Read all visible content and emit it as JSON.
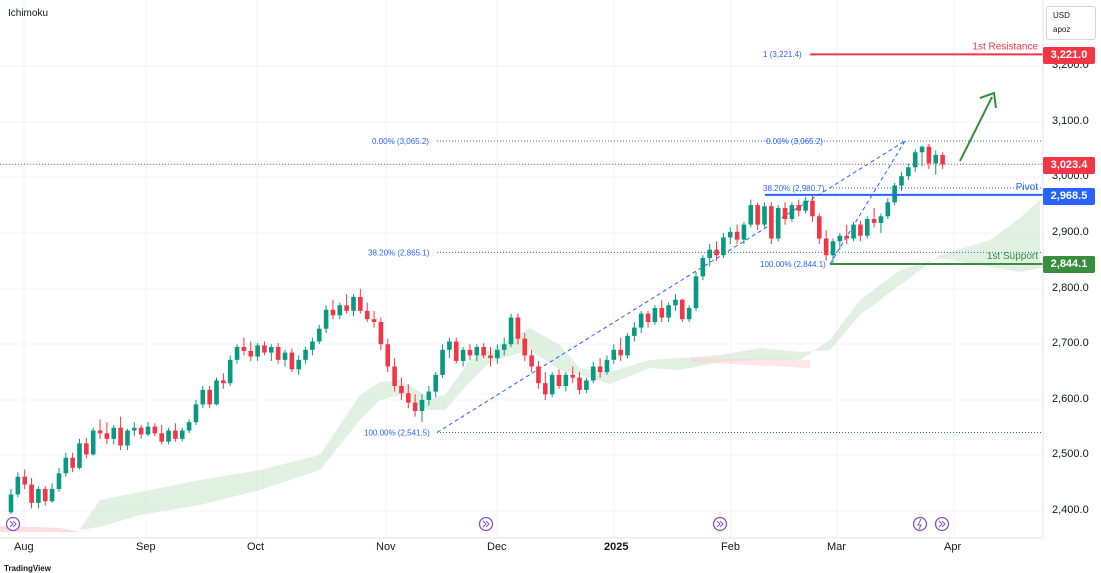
{
  "indicator": "Ichimoku",
  "currency": {
    "code": "USD",
    "sub": "apoz"
  },
  "colors": {
    "up": "#089981",
    "down": "#f23645",
    "resistance": "#f23645",
    "pivot": "#2962ff",
    "support": "#388e3c",
    "cloud_bull": "#c8e6c9",
    "cloud_bear": "#ffcdd2",
    "fib": "#2962ff",
    "arrow": "#388e3c",
    "event": "#7e57c2"
  },
  "price_tags": {
    "resistance": "3,221.0",
    "current": "3,023.4",
    "pivot": "2,968.5",
    "support": "2,844.1"
  },
  "level_labels": {
    "resistance": "1st Resistance",
    "pivot": "Pivot",
    "support": "1st Support"
  },
  "fib_labels": {
    "top_left": "0.00% (3,065.2)",
    "mid_left": "38.20% (2,865.1)",
    "bottom_left": "100.00% (2,541.5)",
    "top_right": "0.00% (3,065.2)",
    "mid_right": "38.20% (2,980.7)",
    "bottom_right": "100.00% (2,844.1)",
    "extension": "1 (3,221.4)"
  },
  "y_axis": [
    "3,200.0",
    "3,100.0",
    "3,000.0",
    "2,900.0",
    "2,800.0",
    "2,700.0",
    "2,600.0",
    "2,500.0",
    "2,400.0"
  ],
  "x_axis": [
    "Aug",
    "Sep",
    "Oct",
    "Nov",
    "Dec",
    "2025",
    "Feb",
    "Mar",
    "Apr"
  ],
  "footer": "TradingView",
  "chart_data": {
    "type": "candlestick",
    "title": "",
    "ylim": [
      2370,
      3245
    ],
    "levels": {
      "resistance": 3221.0,
      "pivot": 2968.5,
      "support": 2844.1,
      "current": 3023.4
    },
    "candles": [
      [
        2398,
        2440,
        2395,
        2430
      ],
      [
        2430,
        2470,
        2425,
        2462
      ],
      [
        2462,
        2475,
        2440,
        2448
      ],
      [
        2448,
        2460,
        2405,
        2415
      ],
      [
        2415,
        2445,
        2405,
        2440
      ],
      [
        2440,
        2445,
        2410,
        2418
      ],
      [
        2418,
        2450,
        2415,
        2440
      ],
      [
        2440,
        2478,
        2435,
        2468
      ],
      [
        2468,
        2505,
        2462,
        2496
      ],
      [
        2496,
        2505,
        2470,
        2478
      ],
      [
        2478,
        2530,
        2475,
        2522
      ],
      [
        2522,
        2532,
        2495,
        2502
      ],
      [
        2502,
        2550,
        2500,
        2545
      ],
      [
        2545,
        2565,
        2530,
        2540
      ],
      [
        2540,
        2560,
        2520,
        2530
      ],
      [
        2530,
        2555,
        2520,
        2550
      ],
      [
        2550,
        2570,
        2510,
        2518
      ],
      [
        2518,
        2548,
        2510,
        2545
      ],
      [
        2545,
        2560,
        2535,
        2550
      ],
      [
        2550,
        2555,
        2530,
        2538
      ],
      [
        2538,
        2560,
        2535,
        2552
      ],
      [
        2552,
        2558,
        2535,
        2540
      ],
      [
        2540,
        2555,
        2520,
        2525
      ],
      [
        2525,
        2550,
        2520,
        2545
      ],
      [
        2545,
        2558,
        2525,
        2530
      ],
      [
        2530,
        2550,
        2525,
        2545
      ],
      [
        2545,
        2565,
        2540,
        2560
      ],
      [
        2560,
        2600,
        2555,
        2592
      ],
      [
        2592,
        2625,
        2585,
        2618
      ],
      [
        2618,
        2625,
        2585,
        2592
      ],
      [
        2592,
        2640,
        2590,
        2635
      ],
      [
        2635,
        2648,
        2620,
        2630
      ],
      [
        2630,
        2680,
        2625,
        2672
      ],
      [
        2672,
        2700,
        2665,
        2695
      ],
      [
        2695,
        2712,
        2680,
        2688
      ],
      [
        2688,
        2705,
        2670,
        2678
      ],
      [
        2678,
        2702,
        2670,
        2698
      ],
      [
        2698,
        2705,
        2680,
        2685
      ],
      [
        2685,
        2700,
        2670,
        2695
      ],
      [
        2695,
        2702,
        2665,
        2672
      ],
      [
        2672,
        2690,
        2660,
        2685
      ],
      [
        2685,
        2692,
        2650,
        2655
      ],
      [
        2655,
        2680,
        2645,
        2672
      ],
      [
        2672,
        2695,
        2665,
        2690
      ],
      [
        2690,
        2712,
        2680,
        2705
      ],
      [
        2705,
        2735,
        2700,
        2728
      ],
      [
        2728,
        2770,
        2720,
        2762
      ],
      [
        2762,
        2780,
        2745,
        2752
      ],
      [
        2752,
        2775,
        2745,
        2770
      ],
      [
        2770,
        2790,
        2755,
        2760
      ],
      [
        2760,
        2790,
        2750,
        2785
      ],
      [
        2785,
        2800,
        2755,
        2760
      ],
      [
        2760,
        2775,
        2740,
        2745
      ],
      [
        2745,
        2760,
        2730,
        2740
      ],
      [
        2740,
        2748,
        2690,
        2700
      ],
      [
        2700,
        2710,
        2650,
        2660
      ],
      [
        2660,
        2675,
        2615,
        2625
      ],
      [
        2625,
        2640,
        2600,
        2612
      ],
      [
        2612,
        2628,
        2585,
        2595
      ],
      [
        2595,
        2610,
        2570,
        2580
      ],
      [
        2580,
        2610,
        2560,
        2600
      ],
      [
        2600,
        2625,
        2590,
        2615
      ],
      [
        2615,
        2650,
        2605,
        2645
      ],
      [
        2645,
        2700,
        2640,
        2690
      ],
      [
        2690,
        2712,
        2675,
        2705
      ],
      [
        2705,
        2712,
        2665,
        2670
      ],
      [
        2670,
        2695,
        2660,
        2690
      ],
      [
        2690,
        2700,
        2672,
        2680
      ],
      [
        2680,
        2700,
        2670,
        2695
      ],
      [
        2695,
        2702,
        2675,
        2680
      ],
      [
        2680,
        2695,
        2660,
        2675
      ],
      [
        2675,
        2700,
        2665,
        2690
      ],
      [
        2690,
        2712,
        2680,
        2700
      ],
      [
        2700,
        2755,
        2695,
        2748
      ],
      [
        2748,
        2755,
        2700,
        2710
      ],
      [
        2710,
        2720,
        2670,
        2680
      ],
      [
        2680,
        2690,
        2650,
        2660
      ],
      [
        2660,
        2670,
        2620,
        2630
      ],
      [
        2630,
        2650,
        2600,
        2610
      ],
      [
        2610,
        2650,
        2605,
        2645
      ],
      [
        2645,
        2655,
        2620,
        2625
      ],
      [
        2625,
        2650,
        2615,
        2645
      ],
      [
        2645,
        2660,
        2630,
        2640
      ],
      [
        2640,
        2650,
        2610,
        2618
      ],
      [
        2618,
        2640,
        2612,
        2635
      ],
      [
        2635,
        2668,
        2630,
        2660
      ],
      [
        2660,
        2675,
        2640,
        2650
      ],
      [
        2650,
        2680,
        2645,
        2672
      ],
      [
        2672,
        2700,
        2665,
        2690
      ],
      [
        2690,
        2712,
        2670,
        2680
      ],
      [
        2680,
        2720,
        2675,
        2715
      ],
      [
        2715,
        2740,
        2705,
        2730
      ],
      [
        2730,
        2760,
        2720,
        2755
      ],
      [
        2755,
        2760,
        2730,
        2740
      ],
      [
        2740,
        2770,
        2735,
        2765
      ],
      [
        2765,
        2780,
        2740,
        2748
      ],
      [
        2748,
        2775,
        2740,
        2770
      ],
      [
        2770,
        2790,
        2760,
        2780
      ],
      [
        2780,
        2782,
        2740,
        2745
      ],
      [
        2745,
        2770,
        2740,
        2765
      ],
      [
        2765,
        2830,
        2760,
        2822
      ],
      [
        2822,
        2860,
        2815,
        2855
      ],
      [
        2855,
        2880,
        2840,
        2870
      ],
      [
        2870,
        2885,
        2850,
        2860
      ],
      [
        2860,
        2900,
        2855,
        2892
      ],
      [
        2892,
        2910,
        2880,
        2902
      ],
      [
        2902,
        2915,
        2880,
        2888
      ],
      [
        2888,
        2920,
        2880,
        2915
      ],
      [
        2915,
        2960,
        2910,
        2950
      ],
      [
        2950,
        2955,
        2905,
        2915
      ],
      [
        2915,
        2955,
        2910,
        2948
      ],
      [
        2948,
        2955,
        2880,
        2890
      ],
      [
        2890,
        2950,
        2885,
        2945
      ],
      [
        2945,
        2955,
        2915,
        2925
      ],
      [
        2925,
        2955,
        2920,
        2950
      ],
      [
        2950,
        2960,
        2930,
        2940
      ],
      [
        2940,
        2965,
        2935,
        2958
      ],
      [
        2958,
        2970,
        2920,
        2930
      ],
      [
        2930,
        2935,
        2880,
        2890
      ],
      [
        2890,
        2905,
        2850,
        2860
      ],
      [
        2860,
        2890,
        2845,
        2885
      ],
      [
        2885,
        2900,
        2870,
        2895
      ],
      [
        2895,
        2915,
        2880,
        2890
      ],
      [
        2890,
        2920,
        2885,
        2915
      ],
      [
        2915,
        2922,
        2885,
        2895
      ],
      [
        2895,
        2930,
        2890,
        2925
      ],
      [
        2925,
        2945,
        2910,
        2918
      ],
      [
        2918,
        2935,
        2900,
        2930
      ],
      [
        2930,
        2962,
        2925,
        2955
      ],
      [
        2955,
        2990,
        2950,
        2985
      ],
      [
        2985,
        3010,
        2975,
        3002
      ],
      [
        3002,
        3025,
        2995,
        3018
      ],
      [
        3018,
        3050,
        3010,
        3045
      ],
      [
        3045,
        3057,
        3020,
        3055
      ],
      [
        3055,
        3060,
        3015,
        3025
      ],
      [
        3025,
        3048,
        3005,
        3040
      ],
      [
        3040,
        3045,
        3015,
        3023
      ]
    ],
    "fib_retracements": [
      {
        "from": 2541.5,
        "to": 3065.2,
        "levels": [
          [
            0.0,
            3065.2
          ],
          [
            38.2,
            2865.1
          ],
          [
            100.0,
            2541.5
          ]
        ]
      },
      {
        "from": 2844.1,
        "to": 3065.2,
        "levels": [
          [
            0.0,
            3065.2
          ],
          [
            38.2,
            2980.7
          ],
          [
            100.0,
            2844.1
          ]
        ]
      }
    ],
    "fib_extension": {
      "level": 1,
      "value": 3221.4
    }
  }
}
